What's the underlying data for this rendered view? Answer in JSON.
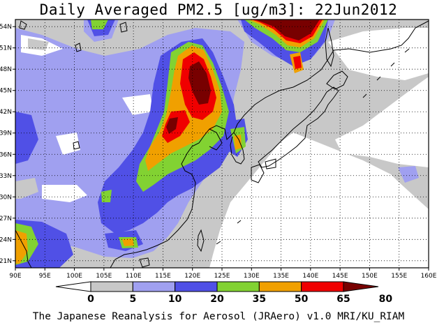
{
  "title": "Daily Averaged PM2.5 [ug/m3]: 22Jun2012",
  "footer": "The Japanese Reanalysis for Aerosol (JRAero) v1.0 MRI/KU_RIAM",
  "axes": {
    "lon_labels": [
      "90E",
      "95E",
      "100E",
      "105E",
      "110E",
      "115E",
      "120E",
      "125E",
      "130E",
      "135E",
      "140E",
      "145E",
      "150E",
      "155E",
      "160E"
    ],
    "lat_labels": [
      "54N",
      "51N",
      "48N",
      "45N",
      "42N",
      "39N",
      "36N",
      "33N",
      "30N",
      "27N",
      "24N",
      "21N"
    ],
    "lon_range": [
      90,
      160
    ],
    "lat_range": [
      20,
      55
    ],
    "grid": "dotted"
  },
  "legend": {
    "labels": [
      "0",
      "5",
      "10",
      "20",
      "35",
      "50",
      "65",
      "80"
    ],
    "colors": [
      "#ffffff",
      "#c8c8c8",
      "#a0a0f0",
      "#5050e6",
      "#82d232",
      "#f0a000",
      "#f00000",
      "#780000"
    ]
  },
  "colors": {
    "land_outline": "#000000",
    "sea_background": "#ffffff"
  }
}
